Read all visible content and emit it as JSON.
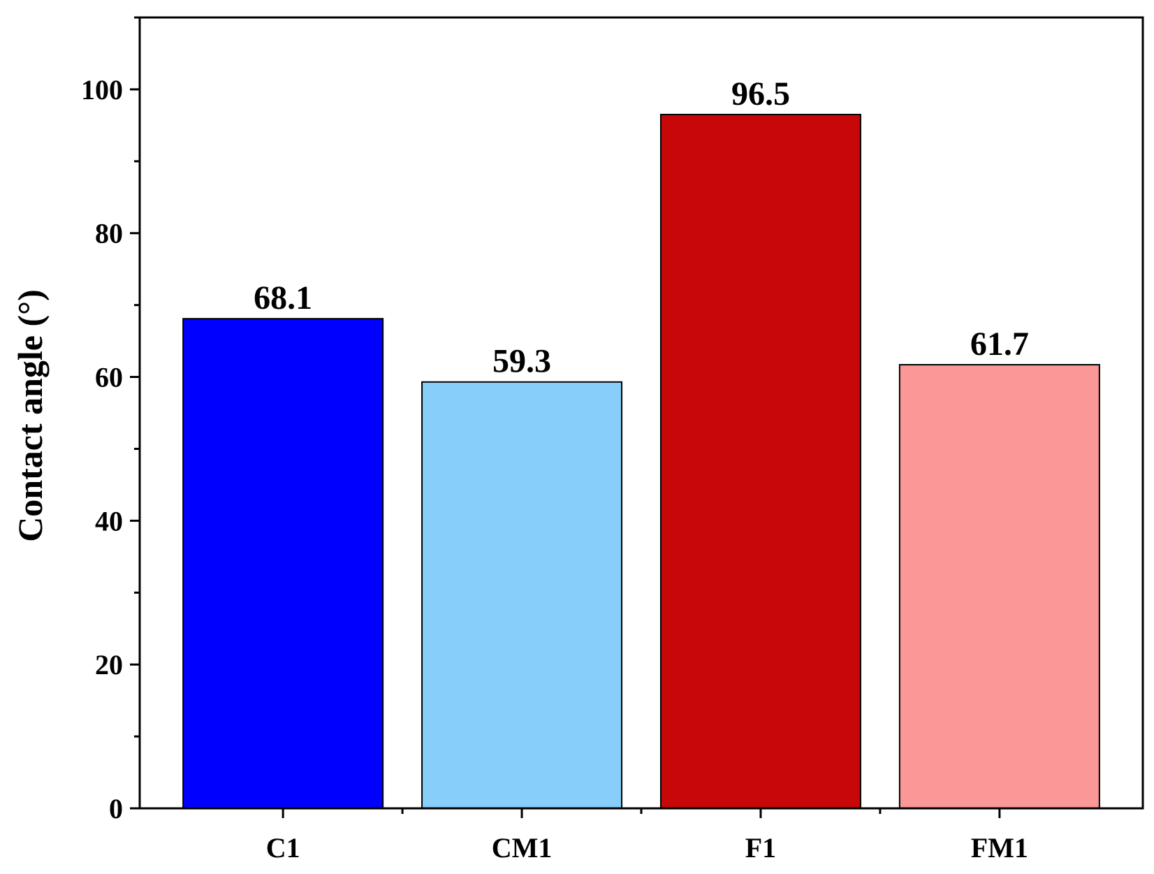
{
  "chart_data": {
    "type": "bar",
    "categories": [
      "C1",
      "CM1",
      "F1",
      "FM1"
    ],
    "values": [
      68.1,
      59.3,
      96.5,
      61.7
    ],
    "value_labels": [
      "68.1",
      "59.3",
      "96.5",
      "61.7"
    ],
    "colors": [
      "#0000FF",
      "#87CEFA",
      "#C80808",
      "#FA9898"
    ],
    "ylabel": "Contact angle (°)",
    "xlabel": "",
    "title": "",
    "ylim": [
      0,
      110
    ],
    "yticks": [
      0,
      20,
      40,
      60,
      80,
      100
    ],
    "y_minor_step": 10,
    "grid": false,
    "legend": "none"
  }
}
